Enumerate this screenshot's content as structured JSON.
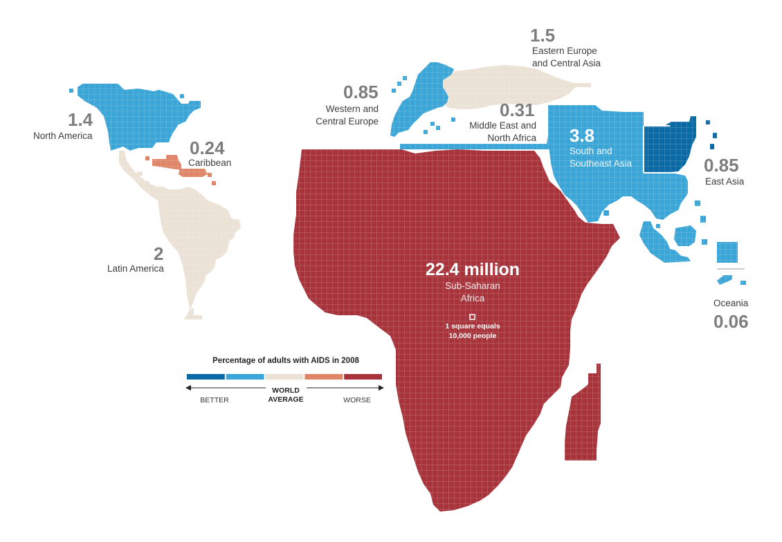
{
  "colors": {
    "darkblue": "#0a6aa6",
    "blue": "#3aa6d8",
    "beige": "#ebe1d5",
    "salmon": "#e08567",
    "red": "#a9333b"
  },
  "regions": {
    "north_america": {
      "value": "1.4",
      "name": "North America",
      "color": "blue"
    },
    "caribbean": {
      "value": "0.24",
      "name": "Caribbean",
      "color": "salmon"
    },
    "latin_america": {
      "value": "2",
      "name": "Latin America",
      "color": "beige"
    },
    "western_europe": {
      "value": "0.85",
      "name_line1": "Western and",
      "name_line2": "Central Europe",
      "color": "blue"
    },
    "eastern_europe": {
      "value": "1.5",
      "name_line1": "Eastern Europe",
      "name_line2": "and Central Asia",
      "color": "beige"
    },
    "middle_east": {
      "value": "0.31",
      "name_line1": "Middle East and",
      "name_line2": "North Africa",
      "color": "blue"
    },
    "south_asia": {
      "value": "3.8",
      "name_line1": "South and",
      "name_line2": "Southeast Asia",
      "color": "blue"
    },
    "east_asia": {
      "value": "0.85",
      "name": "East Asia",
      "color": "darkblue"
    },
    "oceania": {
      "value": "0.06",
      "name": "Oceania",
      "color": "blue"
    },
    "sub_saharan_africa": {
      "value": "22.4 million",
      "name_line1": "Sub-Saharan",
      "name_line2": "Africa",
      "color": "red"
    }
  },
  "key": {
    "square_line1": "1 square equals",
    "square_line2": "10,000 people"
  },
  "legend": {
    "title": "Percentage of adults with AIDS in 2008",
    "colors": [
      "darkblue",
      "blue",
      "beige",
      "salmon",
      "red"
    ],
    "better": "BETTER",
    "worse": "WORSE",
    "avg_line1": "WORLD",
    "avg_line2": "AVERAGE"
  }
}
